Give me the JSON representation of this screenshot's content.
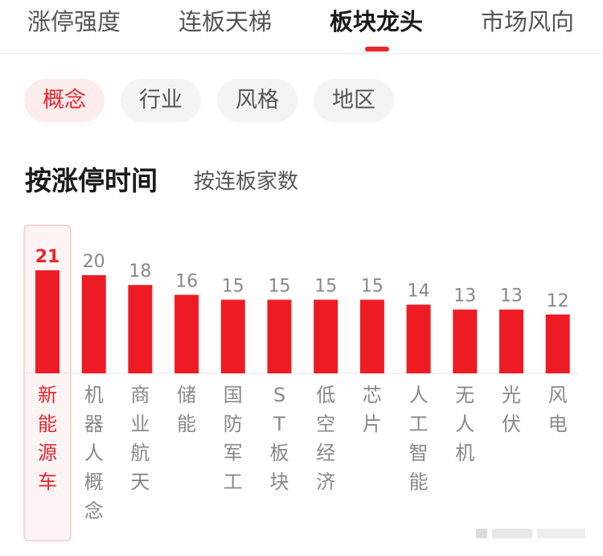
{
  "tabs": [
    {
      "label": "涨停强度",
      "active": false
    },
    {
      "label": "连板天梯",
      "active": false
    },
    {
      "label": "板块龙头",
      "active": true
    },
    {
      "label": "市场风向",
      "active": false
    }
  ],
  "filters": [
    {
      "label": "概念",
      "active": true
    },
    {
      "label": "行业",
      "active": false
    },
    {
      "label": "风格",
      "active": false
    },
    {
      "label": "地区",
      "active": false
    }
  ],
  "sort": {
    "primary": "按涨停时间",
    "secondary": "按连板家数"
  },
  "colors": {
    "bar": "#ed1c24",
    "label_active": "#e8262c",
    "label": "#888888",
    "value": "#888888",
    "highlight_bg": "#fff4f4",
    "highlight_border": "#f5b5b5"
  },
  "chart_data": {
    "type": "bar",
    "categories": [
      "新能源车",
      "机器人概念",
      "商业航天",
      "储能",
      "国防军工",
      "ST板块",
      "低空经济",
      "芯片",
      "人工智能",
      "无人机",
      "光伏",
      "风电"
    ],
    "values": [
      21,
      20,
      18,
      16,
      15,
      15,
      15,
      15,
      14,
      13,
      13,
      12
    ],
    "highlighted_index": 0,
    "data_labels": true,
    "grid": false,
    "title": "",
    "xlabel": "",
    "ylabel": ""
  }
}
